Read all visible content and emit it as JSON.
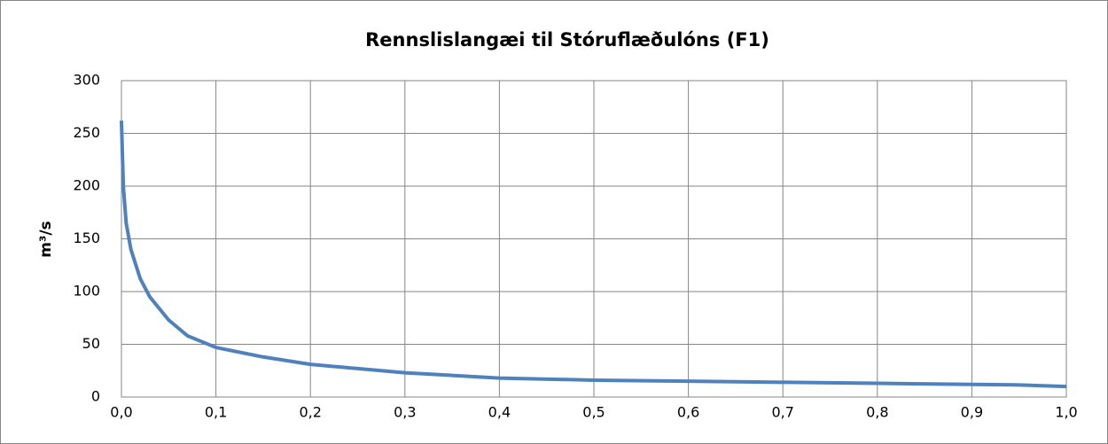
{
  "chart_data": {
    "type": "line",
    "title": "Rennslislangæi til Stóruflæðulóns (F1)",
    "y_label": "m³/s",
    "x": [
      0,
      0.002,
      0.005,
      0.01,
      0.02,
      0.03,
      0.05,
      0.07,
      0.1,
      0.15,
      0.2,
      0.3,
      0.4,
      0.5,
      0.6,
      0.7,
      0.8,
      0.9,
      0.95,
      1.0
    ],
    "series": [
      {
        "name": "F1",
        "color": "#4f81bd",
        "values": [
          262,
          200,
          165,
          140,
          112,
          95,
          73,
          58,
          47,
          38,
          31,
          23,
          18,
          16,
          15,
          14,
          13,
          12,
          11.5,
          10
        ]
      }
    ],
    "xlim": [
      0,
      1
    ],
    "ylim": [
      0,
      300
    ],
    "xticks": [
      {
        "value": 0,
        "label": "0,0"
      },
      {
        "value": 0.1,
        "label": "0,1"
      },
      {
        "value": 0.2,
        "label": "0,2"
      },
      {
        "value": 0.3,
        "label": "0,3"
      },
      {
        "value": 0.4,
        "label": "0,4"
      },
      {
        "value": 0.5,
        "label": "0,5"
      },
      {
        "value": 0.6,
        "label": "0,6"
      },
      {
        "value": 0.7,
        "label": "0,7"
      },
      {
        "value": 0.8,
        "label": "0,8"
      },
      {
        "value": 0.9,
        "label": "0,9"
      },
      {
        "value": 1.0,
        "label": "1,0"
      }
    ],
    "yticks": [
      0,
      50,
      100,
      150,
      200,
      250,
      300
    ],
    "grid": true
  }
}
